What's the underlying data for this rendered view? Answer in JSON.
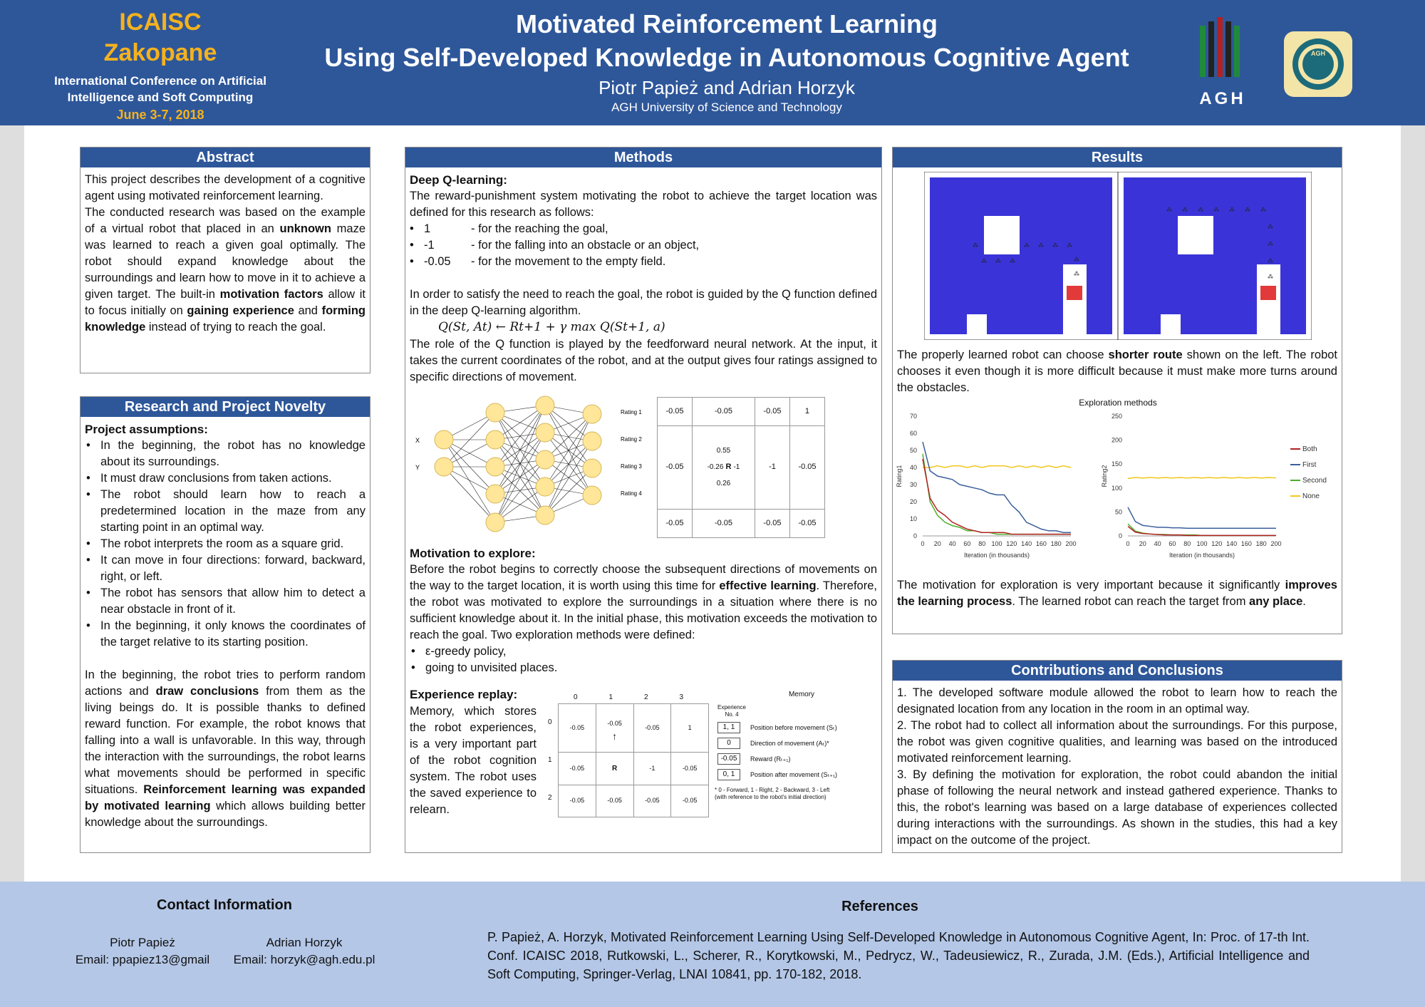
{
  "header": {
    "conf_name1": "ICAISC",
    "conf_name2": "Zakopane",
    "conf_desc1": "International Conference on Artificial",
    "conf_desc2": "Intelligence and Soft Computing",
    "conf_date": "June 3-7, 2018",
    "title1": "Motivated Reinforcement Learning",
    "title2": "Using Self-Developed Knowledge in Autonomous Cognitive Agent",
    "authors": "Piotr Papież and Adrian Horzyk",
    "affiliation": "AGH University of Science and Technology",
    "logo1_text": "AGH",
    "logo2_text": "AGH"
  },
  "abstract": {
    "heading": "Abstract",
    "p1": "This project describes the development of a cognitive agent using motivated reinforcement learning.",
    "p2a": "The conducted research was based on the example of a virtual robot that placed in an ",
    "p2b": "unknown",
    "p2c": " maze was learned to reach a given goal optimally. The robot should expand knowledge about the surroundings and learn how to move in it to achieve a given target. The built-in ",
    "p2d": "motivation factors",
    "p2e": " allow it to focus initially on ",
    "p2f": "gaining experience",
    "p2g": " and ",
    "p2h": "forming knowledge",
    "p2i": " instead of trying to reach the goal."
  },
  "novelty": {
    "heading": "Research and Project Novelty",
    "sub": "Project assumptions:",
    "items": [
      "In the beginning, the robot has no knowledge about its surroundings.",
      "It must draw conclusions from taken actions.",
      "The robot should learn how to reach a predetermined location in the maze from any starting point in an optimal way.",
      "The robot interprets the room as a square grid.",
      "It can move in four directions: forward, backward, right, or left.",
      "The robot has sensors that allow him to detect a near obstacle in front of it.",
      "In the beginning, it only knows the coordinates of the target relative to its starting position."
    ],
    "p1a": "In the beginning, the robot tries to perform random actions and ",
    "p1b": "draw conclusions",
    "p1c": " from them as the living beings do. It is possible thanks to defined reward function. For example, the robot knows that falling into a wall is unfavorable. In this way, through the interaction with the surroundings, the robot learns what movements should be performed in specific situations. ",
    "p1d": "Reinforcement learning was expanded by motivated learning",
    "p1e": " which allows building better knowledge about the surroundings."
  },
  "methods": {
    "heading": "Methods",
    "sub1": "Deep Q-learning:",
    "p1": "The reward-punishment system motivating the robot to achieve the target location was defined for this research as follows:",
    "rewards": [
      {
        "value": "1",
        "desc": "- for the reaching the goal,"
      },
      {
        "value": "-1",
        "desc": "- for the falling into an obstacle or an object,"
      },
      {
        "value": "-0.05",
        "desc": "- for the movement to the empty field."
      }
    ],
    "p2": "In order to satisfy the need to reach the goal, the robot is guided by the Q function defined in the deep Q-learning algorithm.",
    "formula": "Q(St, At) ← Rt+1 + γ max Q(St+1, a)",
    "p3": "The role of the Q function is played by the feedforward neural network. At the input, it takes the current coordinates of the robot, and at the output gives four ratings assigned to specific directions of movement.",
    "nn_inputs": [
      "X",
      "Y"
    ],
    "nn_outputs": [
      "Rating 1",
      "Rating 2",
      "Rating 3",
      "Rating 4"
    ],
    "qgrid": [
      [
        "-0.05",
        "-0.05",
        "-0.05",
        "1"
      ],
      [
        "-0.05",
        "R",
        "-1",
        "-0.05"
      ],
      [
        "-0.05",
        "-0.05",
        "-0.05",
        "-0.05"
      ]
    ],
    "qgrid_extra": {
      "up": "0.55",
      "left": "-0.26",
      "right": "-1",
      "down": "0.26"
    },
    "sub2": "Motivation to explore:",
    "p4a": "Before the robot begins to correctly choose the subsequent directions of movements on the way to the target location, it is worth using this time for ",
    "p4b": "effective learning",
    "p4c": ". Therefore, the robot was motivated to explore the surroundings in a situation where there is no sufficient knowledge about it. In the initial phase, this motivation exceeds the motivation to reach the goal. Two exploration methods were defined:",
    "explore_items": [
      "ε-greedy policy,",
      "going to unvisited places."
    ],
    "sub3": "Experience replay:",
    "p5": "Memory, which stores the robot experiences, is a very important part of the robot cognition system. The robot uses the saved experience to relearn.",
    "er_cols": [
      "0",
      "1",
      "2",
      "3"
    ],
    "er_rows": [
      "0",
      "1",
      "2"
    ],
    "er_grid": [
      [
        "-0.05",
        "-0.05",
        "-0.05",
        "1"
      ],
      [
        "-0.05",
        "R",
        "-1",
        "-0.05"
      ],
      [
        "-0.05",
        "-0.05",
        "-0.05",
        "-0.05"
      ]
    ],
    "memory_title": "Memory",
    "experience_label": "Experience No. 4",
    "memory_rows": [
      {
        "val": "1, 1",
        "label": "Position before movement (Sₜ)"
      },
      {
        "val": "0",
        "label": "Direction of movement (Aₜ)*"
      },
      {
        "val": "-0.05",
        "label": "Reward (Rₜ₊₁)"
      },
      {
        "val": "0, 1",
        "label": "Position after movement (Sₜ₊₁)"
      }
    ],
    "memory_note": "* 0 - Forward, 1 - Right, 2 - Backward, 3 - Left (with reference to the robot's initial direction)"
  },
  "results": {
    "heading": "Results",
    "p1a": "The properly learned robot can choose ",
    "p1b": "shorter route",
    "p1c": " shown on the left. The robot chooses it even though it is more difficult because it must make more turns around the obstacles.",
    "p2a": "The motivation for exploration is very important because it significantly ",
    "p2b": "improves the learning process",
    "p2c": ". The learned robot can reach the target from ",
    "p2d": "any place",
    "p2e": "."
  },
  "chart_data": {
    "type": "line",
    "title": "Exploration methods",
    "panels": [
      {
        "ylabel": "Rating1",
        "xlabel": "Iteration (in thousands)",
        "xlim": [
          0,
          200
        ],
        "ylim": [
          0,
          70
        ],
        "yticks": [
          0,
          10,
          20,
          30,
          40,
          50,
          60,
          70
        ],
        "xticks": [
          0,
          20,
          40,
          60,
          80,
          100,
          120,
          140,
          160,
          180,
          200
        ],
        "x": [
          0,
          10,
          20,
          30,
          40,
          50,
          60,
          70,
          80,
          90,
          100,
          110,
          120,
          130,
          140,
          150,
          160,
          170,
          180,
          190,
          200
        ],
        "series": [
          {
            "name": "Both",
            "values": [
              45,
              22,
              15,
              12,
              8,
              6,
              4,
              3,
              2,
              2,
              2,
              2,
              1,
              1,
              1,
              1,
              1,
              1,
              1,
              1,
              1
            ]
          },
          {
            "name": "First",
            "values": [
              55,
              38,
              35,
              34,
              33,
              30,
              29,
              28,
              27,
              25,
              24,
              24,
              18,
              14,
              8,
              6,
              4,
              3,
              3,
              2,
              2
            ]
          },
          {
            "name": "Second",
            "values": [
              48,
              20,
              12,
              8,
              6,
              5,
              3,
              3,
              2,
              2,
              1,
              1,
              1,
              1,
              1,
              1,
              1,
              1,
              1,
              1,
              1
            ]
          },
          {
            "name": "None",
            "values": [
              40,
              40,
              41,
              40,
              41,
              41,
              40,
              41,
              40,
              41,
              41,
              41,
              40,
              41,
              40,
              41,
              40,
              41,
              40,
              41,
              40
            ]
          }
        ]
      },
      {
        "ylabel": "Rating2",
        "xlabel": "Iteration (in thousands)",
        "xlim": [
          0,
          200
        ],
        "ylim": [
          0,
          250
        ],
        "yticks": [
          0,
          50,
          100,
          150,
          200,
          250
        ],
        "xticks": [
          0,
          20,
          40,
          60,
          80,
          100,
          120,
          140,
          160,
          180,
          200
        ],
        "x": [
          0,
          10,
          20,
          30,
          40,
          50,
          60,
          70,
          80,
          90,
          100,
          110,
          120,
          130,
          140,
          150,
          160,
          170,
          180,
          190,
          200
        ],
        "series": [
          {
            "name": "Both",
            "values": [
              20,
              8,
              5,
              4,
              3,
              2,
              2,
              2,
              1,
              1,
              1,
              1,
              1,
              1,
              1,
              1,
              1,
              1,
              1,
              1,
              1
            ]
          },
          {
            "name": "First",
            "values": [
              60,
              30,
              22,
              20,
              18,
              18,
              17,
              17,
              16,
              16,
              16,
              16,
              16,
              16,
              16,
              16,
              16,
              16,
              16,
              16,
              16
            ]
          },
          {
            "name": "Second",
            "values": [
              25,
              10,
              6,
              4,
              3,
              3,
              2,
              2,
              2,
              2,
              1,
              1,
              1,
              1,
              1,
              1,
              1,
              1,
              1,
              1,
              1
            ]
          },
          {
            "name": "None",
            "values": [
              120,
              122,
              121,
              122,
              121,
              122,
              121,
              122,
              121,
              122,
              121,
              122,
              121,
              122,
              121,
              122,
              121,
              122,
              121,
              122,
              121
            ]
          }
        ]
      }
    ],
    "legend": [
      "Both",
      "First",
      "Second",
      "None"
    ],
    "colors": {
      "Both": "#b22222",
      "First": "#3a5f9c",
      "Second": "#4caf2a",
      "None": "#f2c71a"
    },
    "legend_position": "right"
  },
  "conclusions": {
    "heading": "Contributions and Conclusions",
    "c1": "1. The developed software module allowed the robot to learn how to reach the designated location from any location in the room in an optimal way.",
    "c2": "2. The robot had to collect all information about the surroundings. For this purpose, the robot was given cognitive qualities, and learning was based on the introduced motivated reinforcement learning.",
    "c3": "3. By defining the motivation for exploration, the robot could abandon the initial phase of following the neural network and instead gathered experience. Thanks to this, the robot's learning was based on a large database of experiences collected during interactions with the surroundings. As shown in the studies, this had a key impact on the outcome of the project."
  },
  "footer": {
    "contact_title": "Contact Information",
    "name1": "Piotr Papież",
    "email1": "Email: ppapiez13@gmail",
    "name2": "Adrian Horzyk",
    "email2": "Email: horzyk@agh.edu.pl",
    "refs_title": "References",
    "ref": "P. Papież, A. Horzyk, Motivated Reinforcement Learning Using Self-Developed Knowledge in Autonomous Cognitive Agent, In: Proc. of 17-th Int. Conf. ICAISC 2018, Rutkowski, L., Scherer, R., Korytkowski, M., Pedrycz, W., Tadeusiewicz, R., Zurada, J.M. (Eds.), Artificial Intelligence and Soft Computing, Springer-Verlag, LNAI 10841, pp. 170-182, 2018."
  },
  "colors": {
    "header_bg": "#2e579a",
    "accent": "#f5b21e",
    "footer_bg": "#b4c7e7",
    "maze": "#3a34d8",
    "target": "#e23a3a"
  }
}
